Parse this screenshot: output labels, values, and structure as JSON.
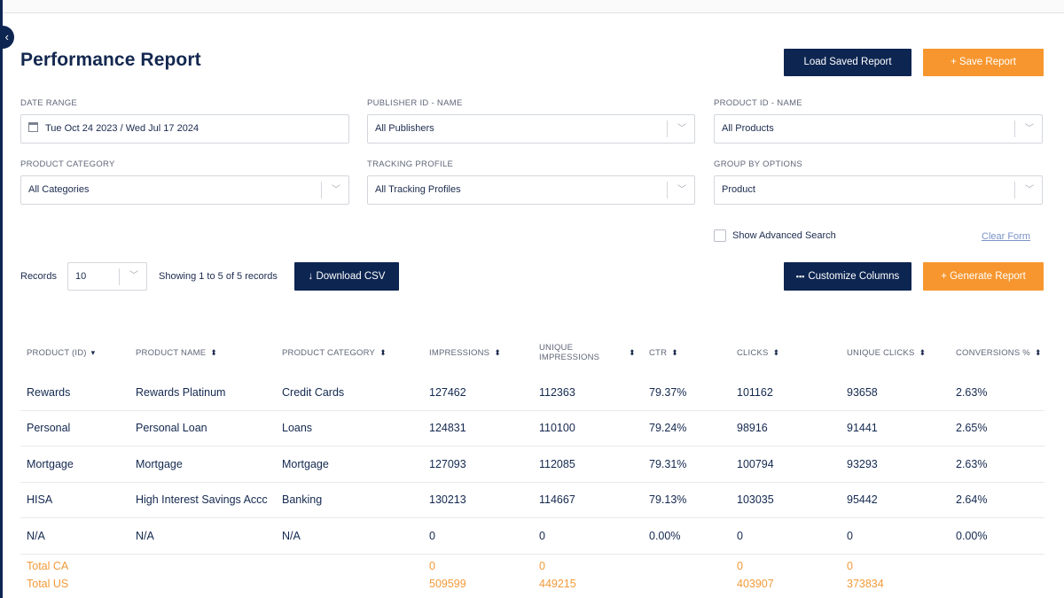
{
  "page": {
    "title": "Performance Report"
  },
  "actions": {
    "load_saved": "Load Saved Report",
    "save": "+ Save Report",
    "download_csv": "↓ Download CSV",
    "customize_columns": "Customize Columns",
    "generate": "+ Generate Report"
  },
  "filters": {
    "date_range": {
      "label": "DATE RANGE",
      "value": "Tue Oct 24 2023 / Wed Jul 17 2024"
    },
    "publisher": {
      "label": "PUBLISHER ID - NAME",
      "value": "All Publishers"
    },
    "product": {
      "label": "PRODUCT ID - NAME",
      "value": "All Products"
    },
    "category": {
      "label": "PRODUCT CATEGORY",
      "value": "All Categories"
    },
    "tracking": {
      "label": "TRACKING PROFILE",
      "value": "All Tracking Profiles"
    },
    "group_by": {
      "label": "GROUP BY OPTIONS",
      "value": "Product"
    }
  },
  "advanced": {
    "show_label": "Show Advanced Search",
    "checked": false,
    "clear_label": "Clear Form"
  },
  "records": {
    "label": "Records",
    "per_page": "10",
    "showing": "Showing 1 to 5 of 5 records"
  },
  "table": {
    "columns": [
      {
        "line1": "PRODUCT (ID)",
        "line2": "",
        "sort": "▾"
      },
      {
        "line1": "PRODUCT NAME",
        "line2": "",
        "sort": "⬍"
      },
      {
        "line1": "PRODUCT CATEGORY",
        "line2": "",
        "sort": "⬍"
      },
      {
        "line1": "IMPRESSIONS",
        "line2": "",
        "sort": "⬍"
      },
      {
        "line1": "UNIQUE",
        "line2": "IMPRESSIONS",
        "sort": "⬍"
      },
      {
        "line1": "CTR",
        "line2": "",
        "sort": "⬍"
      },
      {
        "line1": "CLICKS",
        "line2": "",
        "sort": "⬍"
      },
      {
        "line1": "UNIQUE CLICKS",
        "line2": "",
        "sort": "⬍"
      },
      {
        "line1": "CONVERSIONS %",
        "line2": "",
        "sort": "⬍"
      }
    ],
    "rows": [
      [
        "Rewards",
        "Rewards Platinum",
        "Credit Cards",
        "127462",
        "112363",
        "79.37%",
        "101162",
        "93658",
        "2.63%"
      ],
      [
        "Personal",
        "Personal Loan",
        "Loans",
        "124831",
        "110100",
        "79.24%",
        "98916",
        "91441",
        "2.65%"
      ],
      [
        "Mortgage",
        "Mortgage",
        "Mortgage",
        "127093",
        "112085",
        "79.31%",
        "100794",
        "93293",
        "2.63%"
      ],
      [
        "HISA",
        "High Interest Savings Accc",
        "Banking",
        "130213",
        "114667",
        "79.13%",
        "103035",
        "95442",
        "2.64%"
      ],
      [
        "N/A",
        "N/A",
        "N/A",
        "0",
        "0",
        "0.00%",
        "0",
        "0",
        "0.00%"
      ]
    ],
    "totals": [
      {
        "label": "Total CA",
        "impressions": "0",
        "unique_impressions": "0",
        "clicks": "0",
        "unique_clicks": "0"
      },
      {
        "label": "Total US",
        "impressions": "509599",
        "unique_impressions": "449215",
        "clicks": "403907",
        "unique_clicks": "373834"
      }
    ]
  },
  "colors": {
    "navy": "#0d2551",
    "orange": "#f7962e",
    "total_text": "#f29a38"
  }
}
